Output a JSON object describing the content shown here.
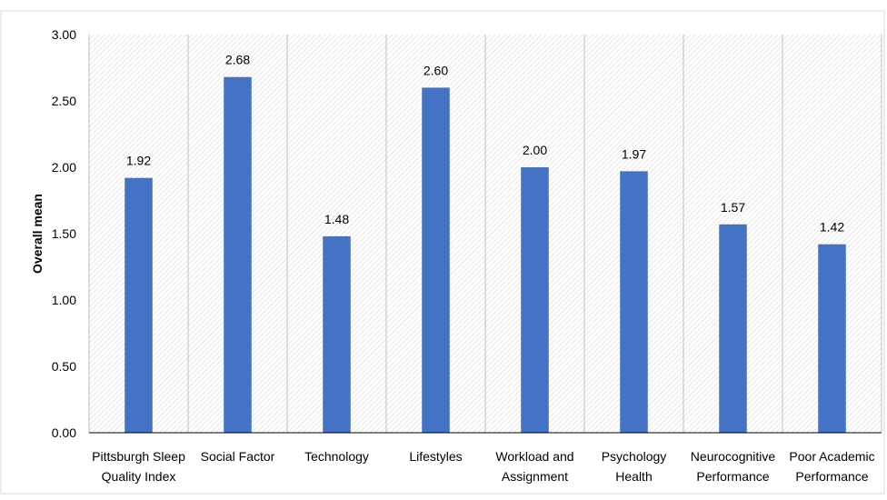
{
  "chart_data": {
    "type": "bar",
    "categories": [
      [
        "Pittsburgh Sleep",
        "Quality Index"
      ],
      [
        "Social Factor"
      ],
      [
        "Technology"
      ],
      [
        "Lifestyles"
      ],
      [
        "Workload and",
        "Assignment"
      ],
      [
        "Psychology",
        "Health"
      ],
      [
        "Neurocognitive",
        "Performance"
      ],
      [
        "Poor Academic",
        "Performance"
      ]
    ],
    "values": [
      1.92,
      2.68,
      1.48,
      2.6,
      2.0,
      1.97,
      1.57,
      1.42
    ],
    "data_labels": [
      "1.92",
      "2.68",
      "1.48",
      "2.60",
      "2.00",
      "1.97",
      "1.57",
      "1.42"
    ],
    "ylabel": "Overall mean",
    "ylim": [
      0,
      3
    ],
    "yticks": [
      "0.00",
      "0.50",
      "1.00",
      "1.50",
      "2.00",
      "2.50",
      "3.00"
    ],
    "grid": "vertical category separators",
    "plot_pattern": "diagonal hatch",
    "colors": {
      "bar": "#4472C4",
      "hatch": "#c8c8c8",
      "separator": "#bfbfbf",
      "axis": "#000000"
    }
  }
}
